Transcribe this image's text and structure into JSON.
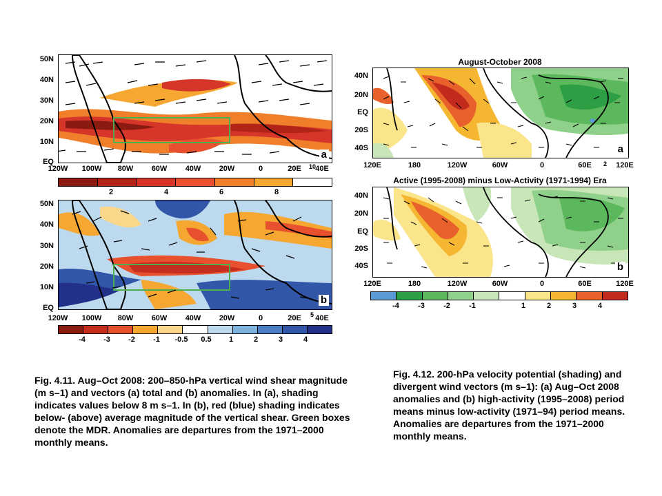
{
  "fig411": {
    "panel_a": {
      "tag": "a",
      "vector_ref": "10"
    },
    "panel_b": {
      "tag": "b",
      "vector_ref": "5"
    },
    "lat_labels": [
      "50N",
      "40N",
      "30N",
      "20N",
      "10N",
      "EQ"
    ],
    "lon_labels": [
      "120W",
      "100W",
      "80W",
      "60W",
      "40W",
      "20W",
      "0",
      "20E",
      "40E"
    ],
    "colorbar_a": {
      "labels": [
        "2",
        "4",
        "6",
        "8"
      ],
      "colors": [
        "#8b1a10",
        "#b32418",
        "#d6352a",
        "#e8512e",
        "#f07f2c",
        "#f5a732",
        "#ffffff"
      ]
    },
    "colorbar_b": {
      "labels": [
        "-4",
        "-3",
        "-2",
        "-1",
        "-0.5",
        "0.5",
        "1",
        "2",
        "3",
        "4"
      ],
      "colors": [
        "#8b1a10",
        "#c52d1f",
        "#e8512e",
        "#f5a732",
        "#fbd78b",
        "#ffffff",
        "#bcd9ee",
        "#7fb2db",
        "#4d7fc4",
        "#3257a8",
        "#22308a"
      ]
    },
    "mdr_box_color": "#4caf50",
    "caption": "Fig. 4.11. Aug–Oct 2008: 200–850-hPa vertical wind shear magnitude (m s–1) and vectors (a) total and (b) anomalies. In (a), shading indicates values below 8 m s–1. In (b), red (blue) shading indicates below- (above) average magnitude of the vertical shear. Green boxes denote the MDR. Anomalies are departures from the 1971–2000 monthly means."
  },
  "fig412": {
    "title_a": "August-October 2008",
    "title_b": "Active (1995-2008) minus Low-Activity (1971-1994) Era",
    "panel_a": {
      "tag": "a",
      "vector_ref": "2"
    },
    "panel_b": {
      "tag": "b"
    },
    "lat_labels": [
      "40N",
      "20N",
      "EQ",
      "20S",
      "40S"
    ],
    "lon_labels": [
      "120E",
      "180",
      "120W",
      "60W",
      "0",
      "60E",
      "120E"
    ],
    "colorbar": {
      "labels": [
        "-4",
        "-3",
        "-2",
        "-1",
        "1",
        "2",
        "3",
        "4"
      ],
      "colors": [
        "#5b9bd5",
        "#2e9e45",
        "#5cb85c",
        "#8fd08a",
        "#c8e6b8",
        "#ffffff",
        "#fbe58a",
        "#f5b731",
        "#e8602c",
        "#c22a1e"
      ]
    },
    "caption": "Fig. 4.12. 200-hPa velocity potential (shading) and divergent wind vectors (m s–1): (a) Aug–Oct 2008 anomalies and (b) high-activity (1995–2008) period means minus low-activity (1971–94) period means. Anomalies are departures from the 1971–2000 monthly means."
  }
}
